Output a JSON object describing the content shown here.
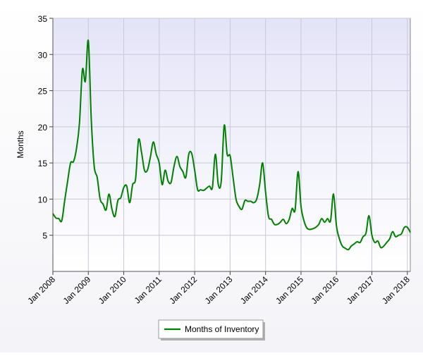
{
  "chart_data": {
    "type": "line",
    "title": "",
    "xlabel": "",
    "ylabel": "Months",
    "ylim": [
      0,
      35
    ],
    "yticks": [
      5,
      10,
      15,
      20,
      25,
      30,
      35
    ],
    "xlim": [
      "2008-01",
      "2018-02"
    ],
    "xtick_labels": [
      "Jan 2008",
      "Jan 2009",
      "Jan 2010",
      "Jan 2011",
      "Jan 2012",
      "Jan 2013",
      "Jan 2014",
      "Jan 2015",
      "Jan 2016",
      "Jan 2017",
      "Jan 2018"
    ],
    "grid": true,
    "legend_position": "bottom-center",
    "colors": {
      "line": "#008000",
      "plot_bg_top": "#e6e6f8",
      "plot_bg_bottom": "#ffffff",
      "grid": "#c8c8d8"
    },
    "series": [
      {
        "name": "Months of Inventory",
        "x": [
          "2008-01",
          "2008-02",
          "2008-03",
          "2008-04",
          "2008-05",
          "2008-06",
          "2008-07",
          "2008-08",
          "2008-09",
          "2008-10",
          "2008-11",
          "2008-12",
          "2009-01",
          "2009-02",
          "2009-03",
          "2009-04",
          "2009-05",
          "2009-06",
          "2009-07",
          "2009-08",
          "2009-09",
          "2009-10",
          "2009-11",
          "2009-12",
          "2010-01",
          "2010-02",
          "2010-03",
          "2010-04",
          "2010-05",
          "2010-06",
          "2010-07",
          "2010-08",
          "2010-09",
          "2010-10",
          "2010-11",
          "2010-12",
          "2011-01",
          "2011-02",
          "2011-03",
          "2011-04",
          "2011-05",
          "2011-06",
          "2011-07",
          "2011-08",
          "2011-09",
          "2011-10",
          "2011-11",
          "2011-12",
          "2012-01",
          "2012-02",
          "2012-03",
          "2012-04",
          "2012-05",
          "2012-06",
          "2012-07",
          "2012-08",
          "2012-09",
          "2012-10",
          "2012-11",
          "2012-12",
          "2013-01",
          "2013-02",
          "2013-03",
          "2013-04",
          "2013-05",
          "2013-06",
          "2013-07",
          "2013-08",
          "2013-09",
          "2013-10",
          "2013-11",
          "2013-12",
          "2014-01",
          "2014-02",
          "2014-03",
          "2014-04",
          "2014-05",
          "2014-06",
          "2014-07",
          "2014-08",
          "2014-09",
          "2014-10",
          "2014-11",
          "2014-12",
          "2015-01",
          "2015-02",
          "2015-03",
          "2015-04",
          "2015-05",
          "2015-06",
          "2015-07",
          "2015-08",
          "2015-09",
          "2015-10",
          "2015-11",
          "2015-12",
          "2016-01",
          "2016-02",
          "2016-03",
          "2016-04",
          "2016-05",
          "2016-06",
          "2016-07",
          "2016-08",
          "2016-09",
          "2016-10",
          "2016-11",
          "2016-12",
          "2017-01",
          "2017-02",
          "2017-03",
          "2017-04",
          "2017-05",
          "2017-06",
          "2017-07",
          "2017-08",
          "2017-09",
          "2017-10",
          "2017-11",
          "2017-12",
          "2018-01",
          "2018-02"
        ],
        "values": [
          8.0,
          7.4,
          7.3,
          7.0,
          9.8,
          12.5,
          15.0,
          15.2,
          17.0,
          20.5,
          27.9,
          26.3,
          31.9,
          21.0,
          14.5,
          13.0,
          10.0,
          9.3,
          8.5,
          10.7,
          8.6,
          7.6,
          9.8,
          10.2,
          11.6,
          11.8,
          9.5,
          12.0,
          12.8,
          18.2,
          16.5,
          14.0,
          14.0,
          15.8,
          17.9,
          16.2,
          15.0,
          12.0,
          14.0,
          12.5,
          12.3,
          14.5,
          15.9,
          14.5,
          13.8,
          13.0,
          16.2,
          16.3,
          14.0,
          11.3,
          11.3,
          11.2,
          11.5,
          11.8,
          11.6,
          16.2,
          12.0,
          12.5,
          20.2,
          16.2,
          16.0,
          13.0,
          10.0,
          9.0,
          8.6,
          9.8,
          9.7,
          9.7,
          9.5,
          10.0,
          12.0,
          15.0,
          11.0,
          7.6,
          7.2,
          6.5,
          6.5,
          6.8,
          7.2,
          6.6,
          7.2,
          8.7,
          8.5,
          13.8,
          9.0,
          7.0,
          6.0,
          5.8,
          5.9,
          6.1,
          6.5,
          7.3,
          6.8,
          7.3,
          7.0,
          10.7,
          6.3,
          4.5,
          3.5,
          3.2,
          3.0,
          3.5,
          3.8,
          4.1,
          4.0,
          4.8,
          5.3,
          7.7,
          5.0,
          4.0,
          4.2,
          3.3,
          3.5,
          4.0,
          4.5,
          5.5,
          4.8,
          5.0,
          5.2,
          6.1,
          6.1,
          5.4
        ]
      }
    ]
  }
}
